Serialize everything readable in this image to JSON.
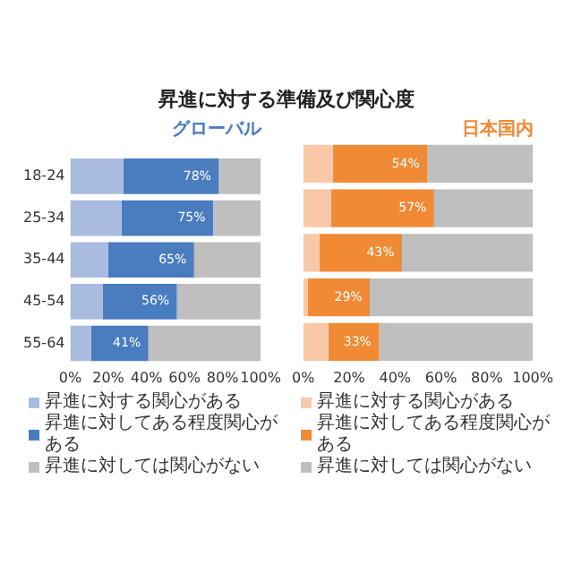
{
  "chart_data": [
    {
      "type": "bar",
      "title": "昇進に対する準備及び関心度",
      "subtitle": "グローバル",
      "orientation": "horizontal",
      "stacked": true,
      "categories": [
        "18-24",
        "25-34",
        "35-44",
        "45-54",
        "55-64"
      ],
      "series": [
        {
          "name": "昇進に対する関心がある",
          "color": "#a9bce0",
          "values": [
            28,
            27,
            20,
            17,
            11
          ]
        },
        {
          "name": "昇進に対してある程度関心がある",
          "color": "#4a7cc0",
          "values": [
            50,
            48,
            45,
            39,
            30
          ]
        },
        {
          "name": "昇進に対しては関心がない",
          "color": "#bfbfbf",
          "values": [
            22,
            25,
            35,
            44,
            59
          ]
        }
      ],
      "annotations": [
        {
          "text": "78%",
          "x": 78,
          "y": "18-24"
        },
        {
          "text": "75%",
          "x": 75,
          "y": "25-34"
        },
        {
          "text": "65%",
          "x": 65,
          "y": "35-44"
        },
        {
          "text": "56%",
          "x": 56,
          "y": "45-54"
        },
        {
          "text": "41%",
          "x": 41,
          "y": "55-64"
        }
      ],
      "xlim": [
        0,
        100
      ],
      "xticks": [
        {
          "value": 0,
          "label": "0%"
        },
        {
          "value": 20,
          "label": "20%"
        },
        {
          "value": 40,
          "label": "40%"
        },
        {
          "value": 60,
          "label": "60%"
        },
        {
          "value": 80,
          "label": "80%"
        },
        {
          "value": 100,
          "label": "100%"
        }
      ],
      "grid": false,
      "legend": "bottom"
    },
    {
      "type": "bar",
      "subtitle": "日本国内",
      "orientation": "horizontal",
      "stacked": true,
      "categories": [
        "18-24",
        "25-34",
        "35-44",
        "45-54",
        "55-64"
      ],
      "series": [
        {
          "name": "昇進に対する関心がある",
          "color": "#f8c8a8",
          "values": [
            13,
            12,
            7,
            2,
            11
          ]
        },
        {
          "name": "昇進に対してある程度関心がある",
          "color": "#f08a35",
          "values": [
            41,
            45,
            36,
            27,
            22
          ]
        },
        {
          "name": "昇進に対しては関心がない",
          "color": "#bfbfbf",
          "values": [
            46,
            43,
            57,
            71,
            67
          ]
        }
      ],
      "annotations": [
        {
          "text": "54%",
          "x": 54,
          "y": "18-24"
        },
        {
          "text": "57%",
          "x": 57,
          "y": "25-34"
        },
        {
          "text": "43%",
          "x": 43,
          "y": "35-44"
        },
        {
          "text": "29%",
          "x": 29,
          "y": "45-54"
        },
        {
          "text": "33%",
          "x": 33,
          "y": "55-64"
        }
      ],
      "xlim": [
        0,
        100
      ],
      "xticks": [
        {
          "value": 0,
          "label": "0%"
        },
        {
          "value": 20,
          "label": "20%"
        },
        {
          "value": 40,
          "label": "40%"
        },
        {
          "value": 60,
          "label": "60%"
        },
        {
          "value": 80,
          "label": "80%"
        },
        {
          "value": 100,
          "label": "100%"
        }
      ],
      "grid": false,
      "legend": "bottom",
      "tick_labels": "x"
    }
  ]
}
